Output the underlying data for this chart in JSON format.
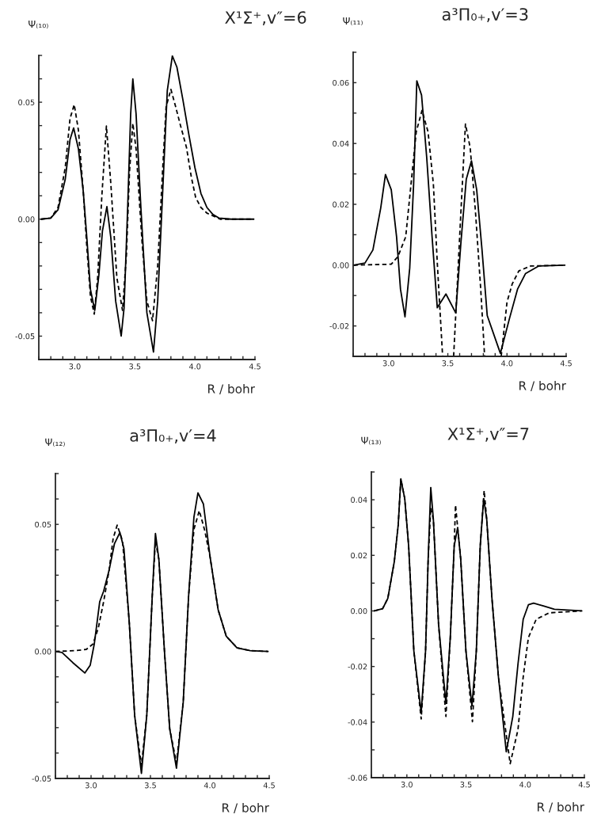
{
  "chart_data": [
    {
      "type": "line",
      "title": "X¹Σ⁺,v″=6",
      "ylabel": "Ψ₍₁₀₎",
      "xlabel": "R / bohr",
      "xlim": [
        2.7,
        4.5
      ],
      "ylim": [
        -0.06,
        0.07
      ],
      "grid": false,
      "xticks": [
        {
          "value": 2.7,
          "label": null
        },
        {
          "value": 2.8,
          "label": null
        },
        {
          "value": 2.9,
          "label": null
        },
        {
          "value": 3.0,
          "label": "3.0"
        },
        {
          "value": 3.1,
          "label": null
        },
        {
          "value": 3.2,
          "label": null
        },
        {
          "value": 3.3,
          "label": null
        },
        {
          "value": 3.4,
          "label": null
        },
        {
          "value": 3.5,
          "label": "3.5"
        },
        {
          "value": 3.6,
          "label": null
        },
        {
          "value": 3.7,
          "label": null
        },
        {
          "value": 3.8,
          "label": null
        },
        {
          "value": 3.9,
          "label": null
        },
        {
          "value": 4.0,
          "label": "4.0"
        },
        {
          "value": 4.1,
          "label": null
        },
        {
          "value": 4.2,
          "label": null
        },
        {
          "value": 4.3,
          "label": null
        },
        {
          "value": 4.4,
          "label": null
        },
        {
          "value": 4.5,
          "label": "4.5"
        }
      ],
      "yticks": [
        {
          "value": -0.06,
          "label": null
        },
        {
          "value": -0.05,
          "label": "-0.05"
        },
        {
          "value": -0.04,
          "label": null
        },
        {
          "value": -0.03,
          "label": null
        },
        {
          "value": -0.02,
          "label": null
        },
        {
          "value": -0.01,
          "label": null
        },
        {
          "value": 0.0,
          "label": "0.00"
        },
        {
          "value": 0.01,
          "label": null
        },
        {
          "value": 0.02,
          "label": null
        },
        {
          "value": 0.03,
          "label": null
        },
        {
          "value": 0.04,
          "label": null
        },
        {
          "value": 0.05,
          "label": "0.05"
        },
        {
          "value": 0.06,
          "label": null
        },
        {
          "value": 0.07,
          "label": null
        }
      ],
      "series": [
        {
          "color": "#000000",
          "line_style": "solid",
          "x": [
            2.72,
            2.8,
            2.86,
            2.92,
            2.96,
            2.99,
            3.03,
            3.07,
            3.1,
            3.13,
            3.166,
            3.2,
            3.23,
            3.267,
            3.3,
            3.34,
            3.386,
            3.41,
            3.44,
            3.465,
            3.483,
            3.51,
            3.55,
            3.6,
            3.655,
            3.69,
            3.73,
            3.77,
            3.812,
            3.85,
            3.9,
            3.95,
            4.0,
            4.05,
            4.1,
            4.15,
            4.2,
            4.3,
            4.49
          ],
          "values": [
            0,
            0.0005,
            0.004,
            0.017,
            0.034,
            0.039,
            0.03,
            0.012,
            -0.008,
            -0.03,
            -0.039,
            -0.024,
            -0.005,
            0.0054,
            -0.008,
            -0.035,
            -0.05,
            -0.038,
            0.005,
            0.045,
            0.06,
            0.045,
            0.005,
            -0.04,
            -0.0568,
            -0.035,
            0.01,
            0.055,
            0.0698,
            0.065,
            0.051,
            0.036,
            0.022,
            0.011,
            0.005,
            0.002,
            0.0005,
            0,
            0
          ]
        },
        {
          "color": "#000000",
          "line_style": "dashed",
          "x": [
            2.72,
            2.8,
            2.86,
            2.92,
            2.96,
            2.995,
            3.03,
            3.07,
            3.1,
            3.13,
            3.162,
            3.19,
            3.225,
            3.263,
            3.3,
            3.35,
            3.397,
            3.43,
            3.455,
            3.483,
            3.51,
            3.56,
            3.6,
            3.647,
            3.69,
            3.73,
            3.76,
            3.8,
            3.84,
            3.88,
            3.93,
            3.97,
            4.006,
            4.05,
            4.1,
            4.21,
            4.49
          ],
          "values": [
            0,
            0.0005,
            0.005,
            0.022,
            0.043,
            0.049,
            0.038,
            0.012,
            -0.012,
            -0.033,
            -0.0406,
            -0.025,
            0.01,
            0.0398,
            0.015,
            -0.025,
            -0.039,
            -0.015,
            0.02,
            0.041,
            0.03,
            -0.01,
            -0.035,
            -0.0434,
            -0.02,
            0.02,
            0.048,
            0.0555,
            0.048,
            0.04,
            0.0306,
            0.018,
            0.0093,
            0.005,
            0.0026,
            0,
            0
          ]
        }
      ]
    },
    {
      "type": "line",
      "title": "a³Π₀₊,v′=3",
      "ylabel": "Ψ₍₁₁₎",
      "xlabel": "R / bohr",
      "xlim": [
        2.7,
        4.5
      ],
      "ylim": [
        -0.03,
        0.07
      ],
      "grid": false,
      "xticks": [
        {
          "value": 2.7,
          "label": null
        },
        {
          "value": 2.8,
          "label": null
        },
        {
          "value": 2.9,
          "label": null
        },
        {
          "value": 3.0,
          "label": "3.0"
        },
        {
          "value": 3.1,
          "label": null
        },
        {
          "value": 3.2,
          "label": null
        },
        {
          "value": 3.3,
          "label": null
        },
        {
          "value": 3.4,
          "label": null
        },
        {
          "value": 3.5,
          "label": "3.5"
        },
        {
          "value": 3.6,
          "label": null
        },
        {
          "value": 3.7,
          "label": null
        },
        {
          "value": 3.8,
          "label": null
        },
        {
          "value": 3.9,
          "label": null
        },
        {
          "value": 4.0,
          "label": "4.0"
        },
        {
          "value": 4.1,
          "label": null
        },
        {
          "value": 4.2,
          "label": null
        },
        {
          "value": 4.3,
          "label": null
        },
        {
          "value": 4.4,
          "label": null
        },
        {
          "value": 4.5,
          "label": "4.5"
        }
      ],
      "yticks": [
        {
          "value": -0.03,
          "label": null
        },
        {
          "value": -0.02,
          "label": "-0.02"
        },
        {
          "value": -0.01,
          "label": null
        },
        {
          "value": 0.0,
          "label": "0.00"
        },
        {
          "value": 0.01,
          "label": null
        },
        {
          "value": 0.02,
          "label": "0.02"
        },
        {
          "value": 0.03,
          "label": null
        },
        {
          "value": 0.04,
          "label": "0.04"
        },
        {
          "value": 0.05,
          "label": null
        },
        {
          "value": 0.06,
          "label": "0.06"
        },
        {
          "value": 0.07,
          "label": null
        }
      ],
      "series": [
        {
          "color": "#000000",
          "line_style": "solid",
          "x": [
            2.704,
            2.8,
            2.867,
            2.933,
            2.973,
            3.022,
            3.067,
            3.1,
            3.138,
            3.178,
            3.211,
            3.238,
            3.278,
            3.322,
            3.367,
            3.411,
            3.484,
            3.567,
            3.611,
            3.656,
            3.7,
            3.744,
            3.789,
            3.833,
            3.944,
            4.022,
            4.089,
            4.156,
            4.267,
            4.489
          ],
          "values": [
            0,
            0.0007,
            0.005,
            0.0188,
            0.0298,
            0.0248,
            0.0093,
            -0.0079,
            -0.017,
            -0.001,
            0.0266,
            0.0606,
            0.0559,
            0.0352,
            0.0093,
            -0.014,
            -0.0095,
            -0.0157,
            0.0076,
            0.0283,
            0.0343,
            0.0248,
            0.005,
            -0.0166,
            -0.029,
            -0.0174,
            -0.0079,
            -0.0028,
            -0.0003,
            0
          ]
        },
        {
          "color": "#000000",
          "line_style": "dashed",
          "x": [
            2.704,
            3.022,
            3.078,
            3.144,
            3.189,
            3.233,
            3.282,
            3.333,
            3.378,
            3.411,
            3.456,
            3.5,
            3.549,
            3.578,
            3.611,
            3.649,
            3.689,
            3.733,
            3.778,
            3.811,
            3.88,
            3.951,
            4.0,
            4.044,
            4.1,
            4.2,
            4.489
          ],
          "values": [
            0,
            0.0003,
            0.0028,
            0.0093,
            0.0266,
            0.0438,
            0.0509,
            0.0438,
            0.0266,
            0.0007,
            -0.03,
            null,
            -0.03,
            -0.0079,
            0.0179,
            0.0464,
            0.0386,
            0.0179,
            -0.0079,
            -0.03,
            null,
            -0.03,
            -0.0122,
            -0.0062,
            -0.0019,
            -0.0003,
            0
          ]
        }
      ]
    },
    {
      "type": "line",
      "title": "a³Π₀₊,v′=4",
      "ylabel": "Ψ₍₁₂₎",
      "xlabel": "R / bohr",
      "xlim": [
        2.7,
        4.5
      ],
      "ylim": [
        -0.05,
        0.07
      ],
      "grid": false,
      "xticks": [
        {
          "value": 2.7,
          "label": null
        },
        {
          "value": 2.8,
          "label": null
        },
        {
          "value": 2.9,
          "label": null
        },
        {
          "value": 3.0,
          "label": "3.0"
        },
        {
          "value": 3.1,
          "label": null
        },
        {
          "value": 3.2,
          "label": null
        },
        {
          "value": 3.3,
          "label": null
        },
        {
          "value": 3.4,
          "label": null
        },
        {
          "value": 3.5,
          "label": "3.5"
        },
        {
          "value": 3.6,
          "label": null
        },
        {
          "value": 3.7,
          "label": null
        },
        {
          "value": 3.8,
          "label": null
        },
        {
          "value": 3.9,
          "label": null
        },
        {
          "value": 4.0,
          "label": "4.0"
        },
        {
          "value": 4.1,
          "label": null
        },
        {
          "value": 4.2,
          "label": null
        },
        {
          "value": 4.3,
          "label": null
        },
        {
          "value": 4.4,
          "label": null
        },
        {
          "value": 4.5,
          "label": "4.5"
        }
      ],
      "yticks": [
        {
          "value": -0.05,
          "label": "-0.05"
        },
        {
          "value": -0.04,
          "label": null
        },
        {
          "value": -0.03,
          "label": null
        },
        {
          "value": -0.02,
          "label": null
        },
        {
          "value": -0.01,
          "label": null
        },
        {
          "value": 0.0,
          "label": "0.00"
        },
        {
          "value": 0.01,
          "label": null
        },
        {
          "value": 0.02,
          "label": null
        },
        {
          "value": 0.03,
          "label": null
        },
        {
          "value": 0.04,
          "label": null
        },
        {
          "value": 0.05,
          "label": "0.05"
        },
        {
          "value": 0.06,
          "label": null
        },
        {
          "value": 0.07,
          "label": null
        }
      ],
      "series": [
        {
          "color": "#000000",
          "line_style": "solid",
          "x": [
            2.7,
            2.755,
            2.846,
            2.948,
            2.993,
            3.027,
            3.073,
            3.106,
            3.152,
            3.197,
            3.243,
            3.277,
            3.322,
            3.367,
            3.424,
            3.469,
            3.515,
            3.542,
            3.571,
            3.617,
            3.662,
            3.719,
            3.776,
            3.821,
            3.866,
            3.9,
            3.946,
            4.002,
            4.07,
            4.138,
            4.229,
            4.34,
            4.49
          ],
          "values": [
            0,
            -0.0004,
            -0.0044,
            -0.0085,
            -0.0054,
            0.0029,
            0.0196,
            0.0237,
            0.032,
            0.0424,
            0.0468,
            0.0404,
            0.0112,
            -0.0252,
            -0.048,
            -0.0252,
            0.0216,
            0.0464,
            0.0362,
            0.0008,
            -0.0304,
            -0.046,
            -0.02,
            0.0216,
            0.0528,
            0.0624,
            0.058,
            0.0372,
            0.0164,
            0.006,
            0.0014,
            0.0003,
            0
          ]
        },
        {
          "color": "#000000",
          "line_style": "dashed",
          "x": [
            2.7,
            2.87,
            2.96,
            3.016,
            3.061,
            3.106,
            3.152,
            3.186,
            3.22,
            3.265,
            3.322,
            3.367,
            3.424,
            3.469,
            3.515,
            3.542,
            3.571,
            3.617,
            3.662,
            3.719,
            3.776,
            3.821,
            3.866,
            3.911,
            3.957,
            4.002,
            4.07,
            4.138,
            4.229,
            4.34,
            4.49
          ],
          "values": [
            0,
            0.0003,
            0.0008,
            0.0029,
            0.0092,
            0.0196,
            0.032,
            0.0445,
            0.0497,
            0.0435,
            0.0112,
            -0.0252,
            -0.045,
            -0.0252,
            0.0216,
            0.0435,
            0.0362,
            0.0008,
            -0.0304,
            -0.0439,
            -0.02,
            0.0216,
            0.048,
            0.0554,
            0.0476,
            0.0372,
            0.0164,
            0.006,
            0.0014,
            0.0003,
            0
          ]
        }
      ]
    },
    {
      "type": "line",
      "title": "X¹Σ⁺,v″=7",
      "ylabel": "Ψ₍₁₃₎",
      "xlabel": "R / bohr",
      "xlim": [
        2.7,
        4.5
      ],
      "ylim": [
        -0.06,
        0.05
      ],
      "grid": false,
      "xticks": [
        {
          "value": 2.7,
          "label": null
        },
        {
          "value": 2.8,
          "label": null
        },
        {
          "value": 2.9,
          "label": null
        },
        {
          "value": 3.0,
          "label": "3.0"
        },
        {
          "value": 3.1,
          "label": null
        },
        {
          "value": 3.2,
          "label": null
        },
        {
          "value": 3.3,
          "label": null
        },
        {
          "value": 3.4,
          "label": null
        },
        {
          "value": 3.5,
          "label": "3.5"
        },
        {
          "value": 3.6,
          "label": null
        },
        {
          "value": 3.7,
          "label": null
        },
        {
          "value": 3.8,
          "label": null
        },
        {
          "value": 3.9,
          "label": null
        },
        {
          "value": 4.0,
          "label": "4.0"
        },
        {
          "value": 4.1,
          "label": null
        },
        {
          "value": 4.2,
          "label": null
        },
        {
          "value": 4.3,
          "label": null
        },
        {
          "value": 4.4,
          "label": null
        },
        {
          "value": 4.5,
          "label": "4.5"
        }
      ],
      "yticks": [
        {
          "value": -0.06,
          "label": "-0.06"
        },
        {
          "value": -0.05,
          "label": null
        },
        {
          "value": -0.04,
          "label": "-0.04"
        },
        {
          "value": -0.03,
          "label": null
        },
        {
          "value": -0.02,
          "label": "-0.02"
        },
        {
          "value": -0.01,
          "label": null
        },
        {
          "value": 0.0,
          "label": "0.00"
        },
        {
          "value": 0.01,
          "label": null
        },
        {
          "value": 0.02,
          "label": "0.02"
        },
        {
          "value": 0.03,
          "label": null
        },
        {
          "value": 0.04,
          "label": "0.04"
        },
        {
          "value": 0.05,
          "label": null
        }
      ],
      "series": [
        {
          "color": "#000000",
          "line_style": "solid",
          "x": [
            2.725,
            2.795,
            2.839,
            2.894,
            2.927,
            2.949,
            2.982,
            3.015,
            3.059,
            3.121,
            3.158,
            3.18,
            3.202,
            3.224,
            3.268,
            3.33,
            3.367,
            3.4,
            3.429,
            3.455,
            3.499,
            3.55,
            3.587,
            3.62,
            3.649,
            3.675,
            3.719,
            3.774,
            3.84,
            3.895,
            3.939,
            3.983,
            4.027,
            4.071,
            4.159,
            4.247,
            4.478
          ],
          "values": [
            0,
            0.0008,
            0.0045,
            0.0178,
            0.031,
            0.0475,
            0.0404,
            0.0234,
            -0.0144,
            -0.0366,
            -0.0144,
            0.0187,
            0.0444,
            0.0329,
            -0.0049,
            -0.0333,
            -0.0096,
            0.0234,
            0.03,
            0.0187,
            -0.0144,
            -0.0342,
            -0.0144,
            0.0234,
            0.0404,
            0.0329,
            0.0045,
            -0.0238,
            -0.0507,
            -0.038,
            -0.0191,
            -0.003,
            0.0022,
            0.0028,
            0.0017,
            0.0006,
            0
          ]
        },
        {
          "color": "#000000",
          "line_style": "dashed",
          "x": [
            2.725,
            2.795,
            2.839,
            2.894,
            2.927,
            2.949,
            2.982,
            3.015,
            3.059,
            3.121,
            3.158,
            3.18,
            3.202,
            3.224,
            3.268,
            3.33,
            3.367,
            3.4,
            3.411,
            3.455,
            3.499,
            3.554,
            3.587,
            3.62,
            3.653,
            3.675,
            3.719,
            3.774,
            3.873,
            3.939,
            3.983,
            4.027,
            4.093,
            4.203,
            4.478
          ],
          "values": [
            0,
            0.0008,
            0.0045,
            0.0178,
            0.031,
            0.0475,
            0.0404,
            0.0234,
            -0.0144,
            -0.0389,
            -0.0144,
            0.0187,
            0.0371,
            0.0329,
            -0.0049,
            -0.038,
            -0.0096,
            0.0234,
            0.0381,
            0.0187,
            -0.0144,
            -0.0399,
            -0.0144,
            0.0234,
            0.0433,
            0.0329,
            0.0045,
            -0.0238,
            -0.055,
            -0.0427,
            -0.0238,
            -0.0096,
            -0.003,
            -0.0007,
            0
          ]
        }
      ]
    }
  ]
}
